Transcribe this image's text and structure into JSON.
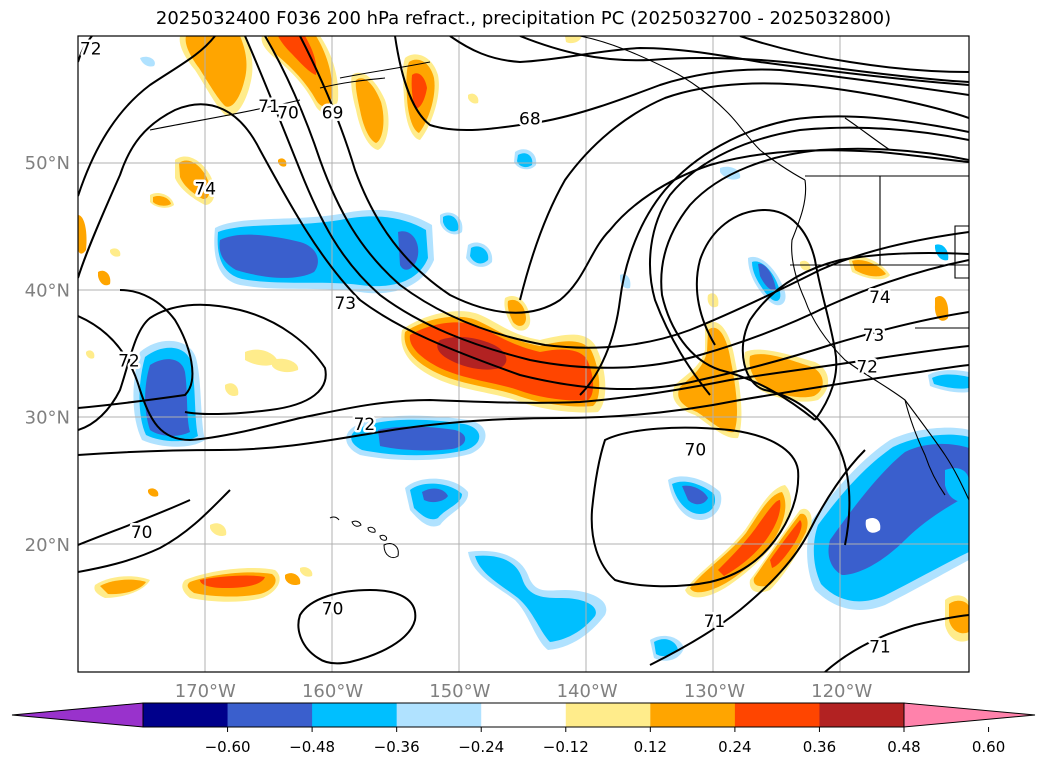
{
  "title": "2025032400 F036 200 hPa refract., precipitation PC (2025032700 - 2025032800)",
  "map": {
    "lon_range": [
      -180,
      -110
    ],
    "lat_range": [
      10,
      60
    ],
    "lat_labels": [
      {
        "lat": 50,
        "text": "50°N"
      },
      {
        "lat": 40,
        "text": "40°N"
      },
      {
        "lat": 30,
        "text": "30°N"
      },
      {
        "lat": 20,
        "text": "20°N"
      }
    ],
    "lon_labels": [
      {
        "lon": -170,
        "text": "170°W"
      },
      {
        "lon": -160,
        "text": "160°W"
      },
      {
        "lon": -150,
        "text": "150°W"
      },
      {
        "lon": -140,
        "text": "140°W"
      },
      {
        "lon": -130,
        "text": "130°W"
      },
      {
        "lon": -120,
        "text": "120°W"
      }
    ],
    "gridlines": true
  },
  "contour_labels": [
    {
      "text": "72",
      "lon": -179,
      "lat": 59
    },
    {
      "text": "71",
      "lon": -165,
      "lat": 54.5
    },
    {
      "text": "70",
      "lon": -163.5,
      "lat": 54
    },
    {
      "text": "69",
      "lon": -160,
      "lat": 54
    },
    {
      "text": "68",
      "lon": -144.5,
      "lat": 53.5
    },
    {
      "text": "74",
      "lon": -170,
      "lat": 48
    },
    {
      "text": "73",
      "lon": -159,
      "lat": 39
    },
    {
      "text": "72",
      "lon": -176,
      "lat": 34.5
    },
    {
      "text": "72",
      "lon": -157.5,
      "lat": 29.5
    },
    {
      "text": "70",
      "lon": -131.5,
      "lat": 27.5
    },
    {
      "text": "74",
      "lon": -117,
      "lat": 39.5
    },
    {
      "text": "73",
      "lon": -117.5,
      "lat": 36.5
    },
    {
      "text": "72",
      "lon": -118,
      "lat": 34
    },
    {
      "text": "70",
      "lon": -175,
      "lat": 21
    },
    {
      "text": "70",
      "lon": -160,
      "lat": 15
    },
    {
      "text": "71",
      "lon": -130,
      "lat": 14
    },
    {
      "text": "71",
      "lon": -117,
      "lat": 12
    }
  ],
  "colorbar": {
    "colors": [
      "#9932cc",
      "#00008b",
      "#3a5fcd",
      "#00bfff",
      "#b0e2ff",
      "#ffffff",
      "#ffec8b",
      "#ffa500",
      "#ff4500",
      "#b22222",
      "#ff82ab"
    ],
    "tick_labels": [
      "−0.60",
      "−0.48",
      "−0.36",
      "−0.24",
      "−0.12",
      "0.12",
      "0.24",
      "0.36",
      "0.48",
      "0.60"
    ]
  },
  "shading": {
    "dark_blue": "#3a5fcd",
    "light_blue": "#00bfff",
    "pale_blue": "#b0e2ff",
    "pale_yellow": "#ffec8b",
    "orange": "#ffa500",
    "red_orange": "#ff4500",
    "dark_red": "#b22222"
  }
}
